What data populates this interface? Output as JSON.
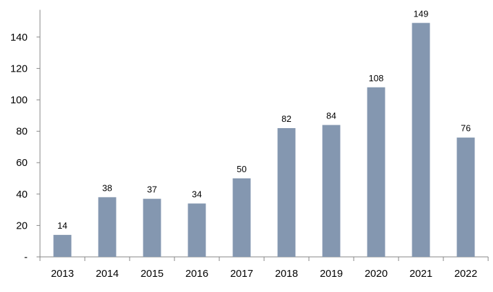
{
  "chart_data": {
    "type": "bar",
    "categories": [
      "2013",
      "2014",
      "2015",
      "2016",
      "2017",
      "2018",
      "2019",
      "2020",
      "2021",
      "2022"
    ],
    "values": [
      14,
      38,
      37,
      34,
      50,
      82,
      84,
      108,
      149,
      76
    ],
    "data_labels": [
      "14",
      "38",
      "37",
      "34",
      "50",
      "82",
      "84",
      "108",
      "149",
      "76"
    ],
    "title": "",
    "xlabel": "",
    "ylabel": "",
    "ylim": [
      0,
      160
    ],
    "yticks": [
      0,
      20,
      40,
      60,
      80,
      100,
      120,
      140
    ],
    "ytick_labels": [
      "-",
      "20",
      "40",
      "60",
      "80",
      "100",
      "120",
      "140"
    ],
    "grid": false,
    "legend": "none",
    "colors": {
      "bar": "#8497b0",
      "axis": "#868686",
      "text": "#000000"
    }
  }
}
